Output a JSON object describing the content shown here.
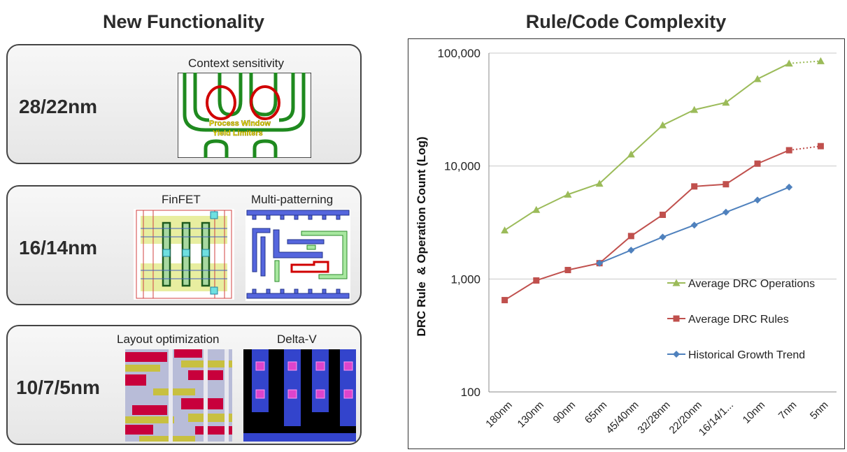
{
  "left_title": "New Functionality",
  "nodes": [
    {
      "label": "28/22nm",
      "captions": [
        "Context sensitivity"
      ],
      "overlay_lines": [
        "Process Window",
        "Yield Limiters"
      ]
    },
    {
      "label": "16/14nm",
      "captions": [
        "FinFET",
        "Multi-patterning"
      ]
    },
    {
      "label": "10/7/5nm",
      "captions": [
        "Layout optimization",
        "Delta-V"
      ]
    }
  ],
  "chart_data": {
    "type": "line",
    "title": "Rule/Code Complexity",
    "ylabel": "DRC Rule  & Operation Count (Log)",
    "y_scale": "log",
    "ylim": [
      100,
      100000
    ],
    "yticks": [
      "100",
      "1,000",
      "10,000",
      "100,000"
    ],
    "categories": [
      "180nm",
      "130nm",
      "90nm",
      "65nm",
      "45/40nm",
      "32/28nm",
      "22/20nm",
      "16/14/1...",
      "10nm",
      "7nm",
      "5nm"
    ],
    "grid": true,
    "legend_position": "right",
    "series": [
      {
        "name": "Average DRC Operations",
        "color": "#9bbb59",
        "marker": "triangle",
        "values": [
          2700,
          4100,
          5600,
          7000,
          12700,
          23000,
          31500,
          36500,
          59000,
          81000,
          85000
        ],
        "dotted_from_index": 9
      },
      {
        "name": "Average DRC Rules",
        "color": "#c0504d",
        "marker": "square",
        "values": [
          650,
          970,
          1200,
          1380,
          2400,
          3700,
          6600,
          6900,
          10500,
          13800,
          15000
        ],
        "dotted_from_index": 9
      },
      {
        "name": "Historical Growth Trend",
        "color": "#4f81bd",
        "marker": "diamond",
        "values": [
          null,
          null,
          null,
          1380,
          1800,
          2350,
          3000,
          3900,
          5000,
          6500,
          null
        ],
        "dotted_from_index": null
      }
    ]
  }
}
